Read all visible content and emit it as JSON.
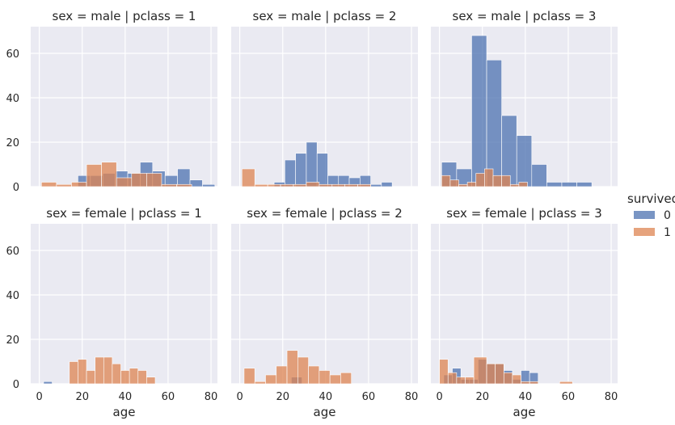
{
  "chart_data": {
    "type": "bar",
    "chart_kind": "histogram facet grid",
    "xlim": [
      -4,
      83
    ],
    "ylim": [
      0,
      72
    ],
    "xticks": [
      0,
      20,
      40,
      60,
      80
    ],
    "yticks": [
      0,
      20,
      40,
      60
    ],
    "grid": true,
    "legend": {
      "title": "survived",
      "placement": "right",
      "entries": [
        {
          "label": "0",
          "color": "#4c72b0"
        },
        {
          "label": "1",
          "color": "#dd8452"
        }
      ]
    },
    "panels": [
      {
        "title": "sex = male | pclass = 1",
        "xlabel": "",
        "series": [
          {
            "name": "0",
            "color": "#4c72b0",
            "bins": [
              [
                18,
                23.8,
                5
              ],
              [
                23.8,
                29.6,
                5
              ],
              [
                29.6,
                35.4,
                6
              ],
              [
                35.4,
                41.2,
                7
              ],
              [
                41.2,
                47,
                6
              ],
              [
                47,
                52.8,
                11
              ],
              [
                52.8,
                58.6,
                7
              ],
              [
                58.6,
                64.4,
                5
              ],
              [
                64.4,
                70.2,
                8
              ],
              [
                70.2,
                76,
                3
              ],
              [
                76,
                81.8,
                1
              ]
            ]
          },
          {
            "name": "1",
            "color": "#dd8452",
            "bins": [
              [
                1,
                8,
                2
              ],
              [
                8,
                15,
                1
              ],
              [
                15,
                22,
                2
              ],
              [
                22,
                29,
                10
              ],
              [
                29,
                36,
                11
              ],
              [
                36,
                43,
                4
              ],
              [
                43,
                50,
                6
              ],
              [
                50,
                57,
                6
              ],
              [
                57,
                64,
                1
              ],
              [
                64,
                71,
                1
              ]
            ]
          }
        ]
      },
      {
        "title": "sex = male | pclass = 2",
        "xlabel": "",
        "series": [
          {
            "name": "0",
            "color": "#4c72b0",
            "bins": [
              [
                16,
                21,
                2
              ],
              [
                21,
                26,
                12
              ],
              [
                26,
                31,
                15
              ],
              [
                31,
                36,
                20
              ],
              [
                36,
                41,
                15
              ],
              [
                41,
                46,
                5
              ],
              [
                46,
                51,
                5
              ],
              [
                51,
                56,
                4
              ],
              [
                56,
                61,
                5
              ],
              [
                61,
                66,
                1
              ],
              [
                66,
                71,
                2
              ]
            ]
          },
          {
            "name": "1",
            "color": "#dd8452",
            "bins": [
              [
                1,
                7,
                8
              ],
              [
                7,
                13,
                1
              ],
              [
                13,
                19,
                1
              ],
              [
                19,
                25,
                1
              ],
              [
                25,
                31,
                1
              ],
              [
                31,
                37,
                2
              ],
              [
                37,
                43,
                1
              ],
              [
                43,
                49,
                1
              ],
              [
                49,
                55,
                1
              ],
              [
                55,
                61,
                1
              ]
            ]
          }
        ]
      },
      {
        "title": "sex = male | pclass = 3",
        "xlabel": "",
        "series": [
          {
            "name": "0",
            "color": "#4c72b0",
            "bins": [
              [
                1,
                8,
                11
              ],
              [
                8,
                15,
                8
              ],
              [
                15,
                22,
                68
              ],
              [
                22,
                29,
                57
              ],
              [
                29,
                36,
                32
              ],
              [
                36,
                43,
                23
              ],
              [
                43,
                50,
                10
              ],
              [
                50,
                57,
                2
              ],
              [
                57,
                64,
                2
              ],
              [
                64,
                71,
                2
              ]
            ]
          },
          {
            "name": "1",
            "color": "#dd8452",
            "bins": [
              [
                1,
                5,
                5
              ],
              [
                5,
                9,
                3
              ],
              [
                9,
                13,
                1
              ],
              [
                13,
                17,
                2
              ],
              [
                17,
                21,
                6
              ],
              [
                21,
                25,
                8
              ],
              [
                25,
                29,
                5
              ],
              [
                29,
                33,
                5
              ],
              [
                33,
                37,
                1
              ],
              [
                37,
                41,
                2
              ]
            ]
          }
        ]
      },
      {
        "title": "sex = female | pclass = 1",
        "xlabel": "age",
        "series": [
          {
            "name": "0",
            "color": "#4c72b0",
            "bins": [
              [
                2,
                6,
                1
              ]
            ]
          },
          {
            "name": "1",
            "color": "#dd8452",
            "bins": [
              [
                14,
                18,
                10
              ],
              [
                18,
                22,
                11
              ],
              [
                22,
                26,
                6
              ],
              [
                26,
                30,
                12
              ],
              [
                30,
                34,
                12
              ],
              [
                34,
                38,
                9
              ],
              [
                38,
                42,
                6
              ],
              [
                42,
                46,
                7
              ],
              [
                46,
                50,
                6
              ],
              [
                50,
                54,
                3
              ]
            ]
          }
        ]
      },
      {
        "title": "sex = female | pclass = 2",
        "xlabel": "age",
        "series": [
          {
            "name": "0",
            "color": "#4c72b0",
            "bins": [
              [
                24,
                29,
                3
              ]
            ]
          },
          {
            "name": "1",
            "color": "#dd8452",
            "bins": [
              [
                2,
                7,
                7
              ],
              [
                7,
                12,
                1
              ],
              [
                12,
                17,
                4
              ],
              [
                17,
                22,
                8
              ],
              [
                22,
                27,
                15
              ],
              [
                27,
                32,
                12
              ],
              [
                32,
                37,
                8
              ],
              [
                37,
                42,
                6
              ],
              [
                42,
                47,
                4
              ],
              [
                47,
                52,
                5
              ]
            ]
          }
        ]
      },
      {
        "title": "sex = female | pclass = 3",
        "xlabel": "age",
        "series": [
          {
            "name": "0",
            "color": "#4c72b0",
            "bins": [
              [
                2,
                6,
                4
              ],
              [
                6,
                10,
                7
              ],
              [
                10,
                14,
                2
              ],
              [
                14,
                18,
                2
              ],
              [
                18,
                22,
                11
              ],
              [
                22,
                26,
                9
              ],
              [
                26,
                30,
                9
              ],
              [
                30,
                34,
                6
              ],
              [
                34,
                38,
                2
              ],
              [
                38,
                42,
                6
              ],
              [
                42,
                46,
                5
              ]
            ]
          },
          {
            "name": "1",
            "color": "#dd8452",
            "bins": [
              [
                0,
                4,
                11
              ],
              [
                4,
                8,
                5
              ],
              [
                8,
                12,
                3
              ],
              [
                12,
                16,
                3
              ],
              [
                16,
                22,
                12
              ],
              [
                22,
                26,
                9
              ],
              [
                26,
                30,
                9
              ],
              [
                30,
                34,
                5
              ],
              [
                34,
                38,
                4
              ],
              [
                38,
                42,
                1
              ],
              [
                42,
                46,
                1
              ],
              [
                56,
                62,
                1
              ]
            ]
          }
        ]
      }
    ]
  }
}
